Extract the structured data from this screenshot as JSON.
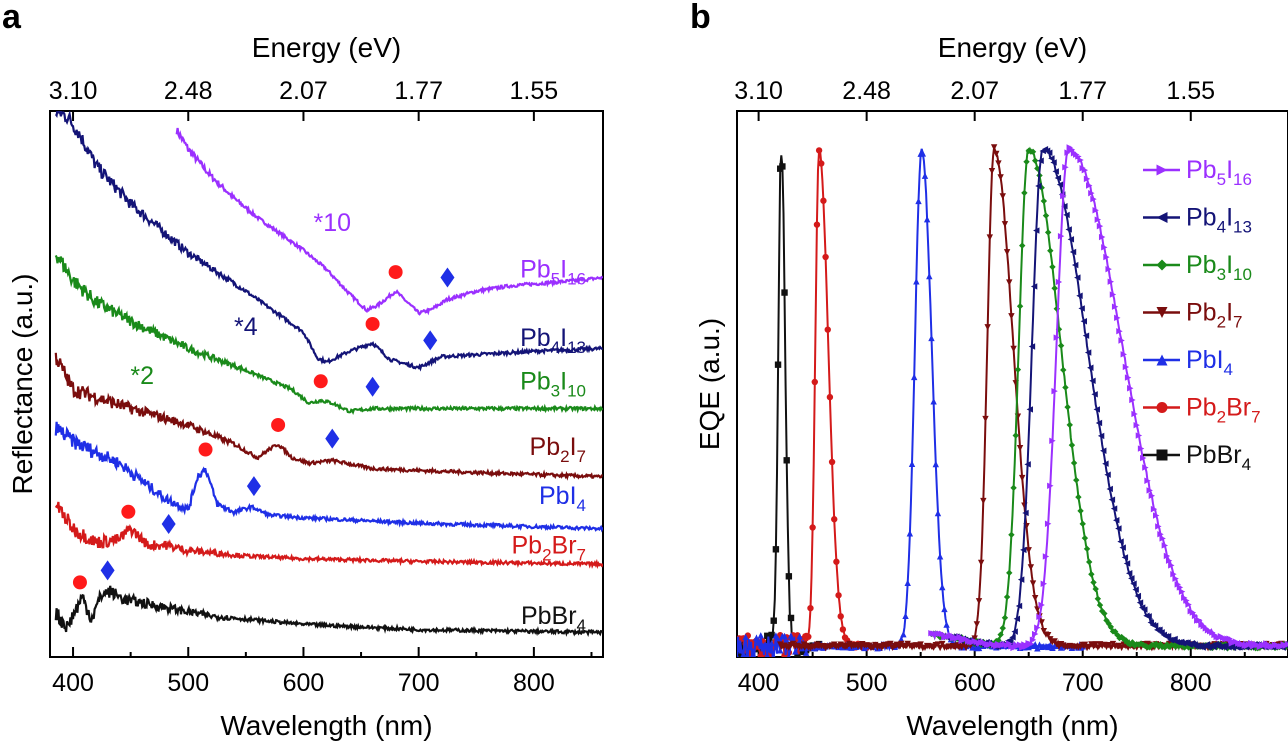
{
  "colors": {
    "purple": "#9b30ff",
    "navy": "#141477",
    "green": "#1a8a1a",
    "maroon": "#7a0d0d",
    "blue": "#1f2fe6",
    "red": "#d41a1a",
    "black": "#111111",
    "marker_circle": "#ff1a1a",
    "marker_diamond": "#1f2fe6"
  },
  "chart_data": [
    {
      "panel": "a",
      "type": "line",
      "xlabel": "Wavelength (nm)",
      "ylabel": "Reflectance (a.u.)",
      "top_xlabel": "Energy (eV)",
      "xlim": [
        380,
        860
      ],
      "ylim": [
        0,
        1
      ],
      "xticks": [
        400,
        500,
        600,
        700,
        800
      ],
      "xtick_labels": [
        "400",
        "500",
        "600",
        "700",
        "800"
      ],
      "top_ticks": [
        {
          "wavelength": 400,
          "label": "3.10"
        },
        {
          "wavelength": 500,
          "label": "2.48"
        },
        {
          "wavelength": 600,
          "label": "2.07"
        },
        {
          "wavelength": 700,
          "label": "1.77"
        },
        {
          "wavelength": 800,
          "label": "1.55"
        }
      ],
      "multiplier_labels": [
        {
          "text": "*10",
          "series": "Pb5I16",
          "x": 625,
          "y": 0.78
        },
        {
          "text": "*4",
          "series": "Pb4I13",
          "x": 550,
          "y": 0.59
        },
        {
          "text": "*2",
          "series": "Pb3I10",
          "x": 460,
          "y": 0.5
        }
      ],
      "series": [
        {
          "name": "Pb5I16",
          "base": "Pb",
          "sub1": "5",
          "mid": "I",
          "sub2": "16",
          "color_key": "purple",
          "x": [
            490,
            500,
            520,
            540,
            560,
            580,
            600,
            620,
            640,
            655,
            665,
            680,
            700,
            710,
            725,
            750,
            780,
            810,
            840,
            860
          ],
          "y": [
            0.965,
            0.93,
            0.88,
            0.84,
            0.805,
            0.775,
            0.745,
            0.71,
            0.665,
            0.635,
            0.645,
            0.67,
            0.63,
            0.635,
            0.655,
            0.67,
            0.68,
            0.685,
            0.69,
            0.695
          ],
          "circle": 680,
          "diamond": 725
        },
        {
          "name": "Pb4I13",
          "base": "Pb",
          "sub1": "4",
          "mid": "I",
          "sub2": "13",
          "color_key": "navy",
          "x": [
            385,
            395,
            405,
            420,
            450,
            500,
            550,
            580,
            600,
            612,
            620,
            640,
            660,
            675,
            700,
            720,
            760,
            800,
            860
          ],
          "y": [
            1.0,
            0.99,
            0.96,
            0.9,
            0.83,
            0.74,
            0.67,
            0.625,
            0.595,
            0.548,
            0.54,
            0.56,
            0.575,
            0.545,
            0.53,
            0.55,
            0.555,
            0.56,
            0.565
          ],
          "circle": 660,
          "diamond": 710
        },
        {
          "name": "Pb3I10",
          "base": "Pb",
          "sub1": "3",
          "mid": "I",
          "sub2": "10",
          "color_key": "green",
          "x": [
            385,
            400,
            420,
            450,
            500,
            550,
            590,
            605,
            615,
            625,
            640,
            660,
            700,
            760,
            860
          ],
          "y": [
            0.74,
            0.69,
            0.65,
            0.615,
            0.565,
            0.525,
            0.49,
            0.465,
            0.47,
            0.465,
            0.45,
            0.455,
            0.455,
            0.455,
            0.455
          ],
          "circle": 615,
          "diamond": 660
        },
        {
          "name": "Pb2I7",
          "base": "Pb",
          "sub1": "2",
          "mid": "I",
          "sub2": "7",
          "color_key": "maroon",
          "x": [
            385,
            400,
            450,
            500,
            540,
            560,
            570,
            578,
            590,
            605,
            625,
            660,
            720,
            860
          ],
          "y": [
            0.55,
            0.49,
            0.455,
            0.425,
            0.39,
            0.365,
            0.38,
            0.39,
            0.365,
            0.355,
            0.36,
            0.345,
            0.34,
            0.33
          ],
          "circle": 578,
          "diamond": 625
        },
        {
          "name": "PbI4",
          "base": "Pb",
          "sub1": "",
          "mid": "I",
          "sub2": "4",
          "color_key": "blue",
          "x": [
            385,
            400,
            440,
            480,
            500,
            508,
            515,
            525,
            540,
            555,
            570,
            600,
            700,
            860
          ],
          "y": [
            0.42,
            0.395,
            0.355,
            0.29,
            0.27,
            0.33,
            0.345,
            0.28,
            0.265,
            0.275,
            0.26,
            0.255,
            0.245,
            0.235
          ],
          "circle": 515,
          "diamond": 557
        },
        {
          "name": "Pb2Br7",
          "base": "Pb",
          "sub1": "2",
          "mid": "Br",
          "sub2": "7",
          "color_key": "red",
          "x": [
            385,
            400,
            420,
            440,
            450,
            465,
            480,
            500,
            550,
            600,
            700,
            860
          ],
          "y": [
            0.28,
            0.235,
            0.21,
            0.215,
            0.235,
            0.205,
            0.205,
            0.195,
            0.185,
            0.18,
            0.175,
            0.17
          ],
          "circle": 448,
          "diamond": 483
        },
        {
          "name": "PbBr4",
          "base": "Pb",
          "sub1": "",
          "mid": "Br",
          "sub2": "4",
          "color_key": "black",
          "x": [
            385,
            395,
            402,
            408,
            416,
            425,
            432,
            445,
            470,
            520,
            600,
            700,
            860
          ],
          "y": [
            0.08,
            0.055,
            0.085,
            0.11,
            0.07,
            0.115,
            0.12,
            0.105,
            0.095,
            0.075,
            0.06,
            0.05,
            0.045
          ],
          "circle": 406,
          "diamond": 430
        }
      ]
    },
    {
      "panel": "b",
      "type": "line",
      "xlabel": "Wavelength (nm)",
      "ylabel": "EQE (a.u.)",
      "top_xlabel": "Energy (eV)",
      "xlim": [
        380,
        890
      ],
      "ylim": [
        0,
        1
      ],
      "xticks": [
        400,
        500,
        600,
        700,
        800
      ],
      "xtick_labels": [
        "400",
        "500",
        "600",
        "700",
        "800"
      ],
      "top_ticks": [
        {
          "wavelength": 400,
          "label": "3.10"
        },
        {
          "wavelength": 500,
          "label": "2.48"
        },
        {
          "wavelength": 600,
          "label": "2.07"
        },
        {
          "wavelength": 700,
          "label": "1.77"
        },
        {
          "wavelength": 800,
          "label": "1.55"
        }
      ],
      "series": [
        {
          "name": "Pb5I16",
          "base": "Pb",
          "sub1": "5",
          "mid": "I",
          "sub2": "16",
          "color_key": "purple",
          "marker": "triangle-right",
          "peak": 687,
          "left_w": 16,
          "right_w": 70,
          "start": 560,
          "end": 890
        },
        {
          "name": "Pb4I13",
          "base": "Pb",
          "sub1": "4",
          "mid": "I",
          "sub2": "13",
          "color_key": "navy",
          "marker": "triangle-left",
          "peak": 663,
          "left_w": 14,
          "right_w": 58,
          "start": 575,
          "end": 890
        },
        {
          "name": "Pb3I10",
          "base": "Pb",
          "sub1": "3",
          "mid": "I",
          "sub2": "10",
          "color_key": "green",
          "marker": "diamond",
          "peak": 650,
          "left_w": 13,
          "right_w": 42,
          "start": 560,
          "end": 890
        },
        {
          "name": "Pb2I7",
          "base": "Pb",
          "sub1": "2",
          "mid": "I",
          "sub2": "7",
          "color_key": "maroon",
          "marker": "triangle-down",
          "peak": 618,
          "left_w": 9,
          "right_w": 25,
          "start": 420,
          "end": 890
        },
        {
          "name": "PbI4",
          "base": "Pb",
          "sub1": "",
          "mid": "I",
          "sub2": "4",
          "color_key": "blue",
          "marker": "triangle-up",
          "peak": 551,
          "left_w": 9,
          "right_w": 13,
          "start": 380,
          "end": 700
        },
        {
          "name": "Pb2Br7",
          "base": "Pb",
          "sub1": "2",
          "mid": "Br",
          "sub2": "7",
          "color_key": "red",
          "marker": "circle",
          "peak": 456,
          "left_w": 5,
          "right_w": 12,
          "start": 380,
          "end": 500
        },
        {
          "name": "PbBr4",
          "base": "Pb",
          "sub1": "",
          "mid": "Br",
          "sub2": "4",
          "color_key": "black",
          "marker": "square",
          "peak": 421,
          "left_w": 4,
          "right_w": 5,
          "start": 380,
          "end": 460
        }
      ]
    }
  ]
}
